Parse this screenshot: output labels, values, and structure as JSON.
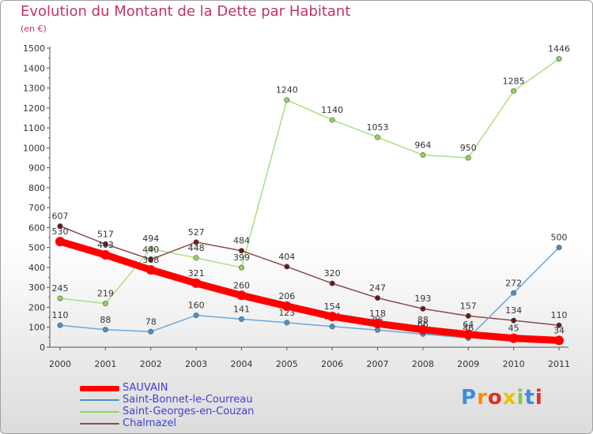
{
  "chart_data": {
    "type": "line",
    "title": "Evolution du Montant de la Dette par Habitant",
    "subtitle": "(en €)",
    "categories": [
      "2000",
      "2001",
      "2002",
      "2003",
      "2004",
      "2005",
      "2006",
      "2007",
      "2008",
      "2009",
      "2010",
      "2011"
    ],
    "y_ticks": [
      "0",
      "100",
      "200",
      "300",
      "400",
      "500",
      "600",
      "700",
      "800",
      "900",
      "1000",
      "1100",
      "1200",
      "1300",
      "1400",
      "1500"
    ],
    "ylim": [
      0,
      1500
    ],
    "grid": false,
    "legend_position": "bottom-left",
    "series": [
      {
        "name": "Saint-Georges-en-Couzan",
        "color": "#8fd45a",
        "line_color": "#a8e080",
        "values": [
          245,
          219,
          494,
          448,
          399,
          1240,
          1140,
          1053,
          964,
          950,
          1285,
          1446
        ],
        "labels": [
          "245",
          "219",
          "494",
          "448",
          "399",
          "1240",
          "1140",
          "1053",
          "964",
          "950",
          "1285",
          "1446"
        ]
      },
      {
        "name": "Chalmazel",
        "color": "#6b1a1a",
        "line_color": "#8a4a4a",
        "values": [
          607,
          517,
          440,
          527,
          484,
          404,
          320,
          247,
          193,
          157,
          134,
          110
        ],
        "labels": [
          "607",
          "517",
          "440",
          "527",
          "484",
          "404",
          "320",
          "247",
          "193",
          "157",
          "134",
          "110"
        ]
      },
      {
        "name": "Saint-Bonnet-le-Courreau",
        "color": "#4a90c8",
        "line_color": "#6aa8d8",
        "values": [
          110,
          88,
          78,
          160,
          141,
          123,
          104,
          86,
          66,
          46,
          272,
          500
        ],
        "labels": [
          "110",
          "88",
          "78",
          "160",
          "141",
          "123",
          "104",
          "86",
          "66",
          "46",
          "272",
          "500"
        ]
      },
      {
        "name": "SAUVAIN",
        "color": "#ff0000",
        "line_color": "#ff0000",
        "values": [
          530,
          463,
          388,
          321,
          260,
          206,
          154,
          118,
          88,
          64,
          45,
          34
        ],
        "labels": [
          "530",
          "463",
          "388",
          "321",
          "260",
          "206",
          "154",
          "118",
          "88",
          "64",
          "45",
          "34"
        ]
      }
    ]
  },
  "legend": {
    "items": [
      {
        "label": "SAUVAIN",
        "color": "#ff0000"
      },
      {
        "label": "Saint-Bonnet-le-Courreau",
        "color": "#4a90c8"
      },
      {
        "label": "Saint-Georges-en-Couzan",
        "color": "#8fd45a"
      },
      {
        "label": "Chalmazel",
        "color": "#8a4a4a"
      }
    ]
  },
  "logo": {
    "text": "Proxiti",
    "letters": [
      "P",
      "r",
      "o",
      "x",
      "i",
      "t",
      "i"
    ],
    "colors": [
      "#3a8fd8",
      "#ff8c00",
      "#e03020",
      "#f0c000",
      "#8bc34a",
      "#3a8fd8",
      "#e03020"
    ]
  }
}
